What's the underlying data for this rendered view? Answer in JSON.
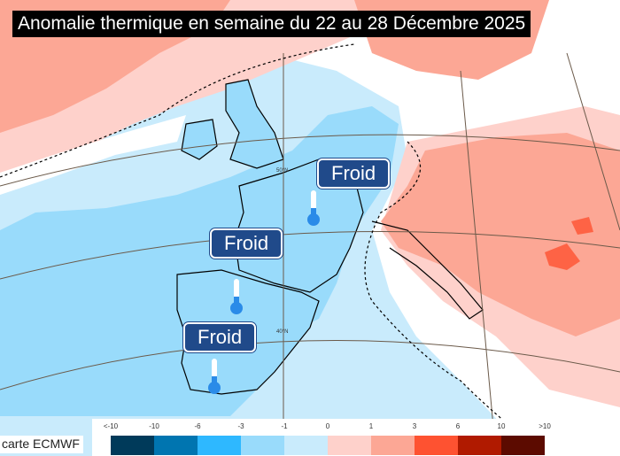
{
  "title": "Anomalie thermique en semaine du 22 au 28 Décembre 2025",
  "labels": [
    {
      "text": "Froid",
      "icon": "thermometer-cold-icon"
    },
    {
      "text": "Froid",
      "icon": "thermometer-cold-icon"
    },
    {
      "text": "Froid",
      "icon": "thermometer-cold-icon"
    }
  ],
  "latitude_labels": [
    "50°N",
    "40°N"
  ],
  "credit": "carte ECMWF",
  "legend": {
    "ticks": [
      "<-10",
      "-10",
      "-6",
      "-3",
      "-1",
      "0",
      "1",
      "3",
      "6",
      "10",
      ">10"
    ],
    "colors": [
      "#003a5a",
      "#0075b0",
      "#2eb8ff",
      "#99dbfb",
      "#c9ebfc",
      "#fed1cb",
      "#fca795",
      "#fe5231",
      "#b01a00",
      "#5c0b00"
    ]
  },
  "colors": {
    "label_bg": "#204a8a",
    "cold": "#2a8be8"
  }
}
